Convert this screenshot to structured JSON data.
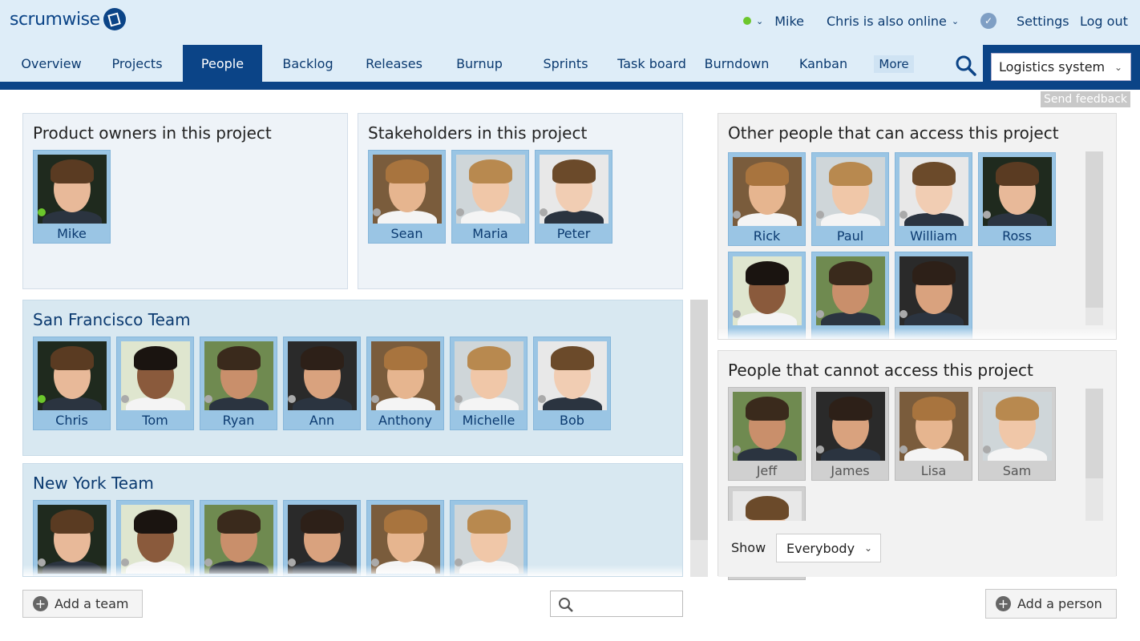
{
  "app": {
    "logo": "scrumwise"
  },
  "topbar": {
    "user": "Mike",
    "online": "Chris is also online",
    "settings": "Settings",
    "logout": "Log out",
    "status_color": "#6cc72c"
  },
  "nav": {
    "tabs": [
      "Overview",
      "Projects",
      "People",
      "Backlog",
      "Releases",
      "Burnup",
      "Sprints",
      "Task board",
      "Burndown",
      "Kanban"
    ],
    "active": "People",
    "more": "More",
    "project": "Logistics system"
  },
  "feedback": "Send feedback",
  "sections": {
    "product_owners": {
      "title": "Product owners in this project",
      "people": [
        {
          "name": "Mike",
          "online": true
        }
      ]
    },
    "stakeholders": {
      "title": "Stakeholders in this project",
      "people": [
        {
          "name": "Sean"
        },
        {
          "name": "Maria"
        },
        {
          "name": "Peter"
        }
      ]
    },
    "sf_team": {
      "title": "San Francisco Team",
      "people": [
        {
          "name": "Chris",
          "online": true
        },
        {
          "name": "Tom"
        },
        {
          "name": "Ryan"
        },
        {
          "name": "Ann"
        },
        {
          "name": "Anthony"
        },
        {
          "name": "Michelle"
        },
        {
          "name": "Bob"
        }
      ]
    },
    "ny_team": {
      "title": "New York Team",
      "people": [
        {
          "name": ""
        },
        {
          "name": ""
        },
        {
          "name": ""
        },
        {
          "name": ""
        },
        {
          "name": ""
        },
        {
          "name": ""
        }
      ]
    },
    "other": {
      "title": "Other people that can access this project",
      "people": [
        {
          "name": "Rick"
        },
        {
          "name": "Paul"
        },
        {
          "name": "William"
        },
        {
          "name": "Ross"
        },
        {
          "name": ""
        },
        {
          "name": ""
        },
        {
          "name": ""
        }
      ]
    },
    "cannot": {
      "title": "People that cannot access this project",
      "people": [
        {
          "name": "Jeff"
        },
        {
          "name": "James"
        },
        {
          "name": "Lisa"
        },
        {
          "name": "Sam"
        },
        {
          "name": ""
        }
      ]
    }
  },
  "show": {
    "label": "Show",
    "value": "Everybody"
  },
  "buttons": {
    "add_team": "Add a team",
    "add_person": "Add a person"
  }
}
